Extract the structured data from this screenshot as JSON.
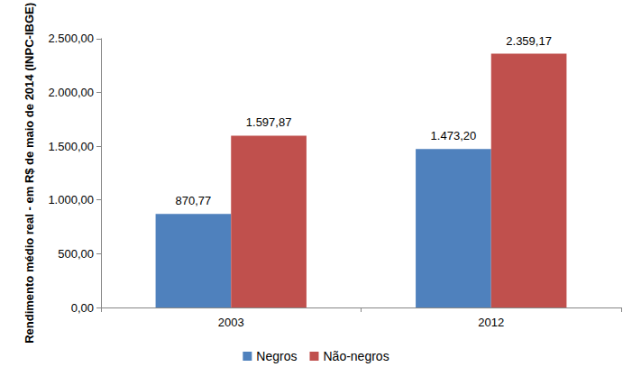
{
  "chart_data": {
    "type": "bar",
    "y_label": "Rendimento médio real - em R$ de maio de 2014 (INPC-IBGE)",
    "categories": [
      "2003",
      "2012"
    ],
    "series": [
      {
        "name": "Negros",
        "color": "#4f81bd",
        "values": [
          870.77,
          1473.2
        ],
        "value_labels": [
          "870,77",
          "1.473,20"
        ]
      },
      {
        "name": "Não-negros",
        "color": "#c0504d",
        "values": [
          1597.87,
          2359.17
        ],
        "value_labels": [
          "1.597,87",
          "2.359,17"
        ]
      }
    ],
    "ylim": [
      0,
      2500
    ],
    "yticks": [
      {
        "value": 0,
        "label": "0,00"
      },
      {
        "value": 500,
        "label": "500,00"
      },
      {
        "value": 1000,
        "label": "1.000,00"
      },
      {
        "value": 1500,
        "label": "1.500,00"
      },
      {
        "value": 2000,
        "label": "2.000,00"
      },
      {
        "value": 2500,
        "label": "2.500,00"
      }
    ],
    "grid": false,
    "legend": "bottom",
    "data_labels": true
  }
}
